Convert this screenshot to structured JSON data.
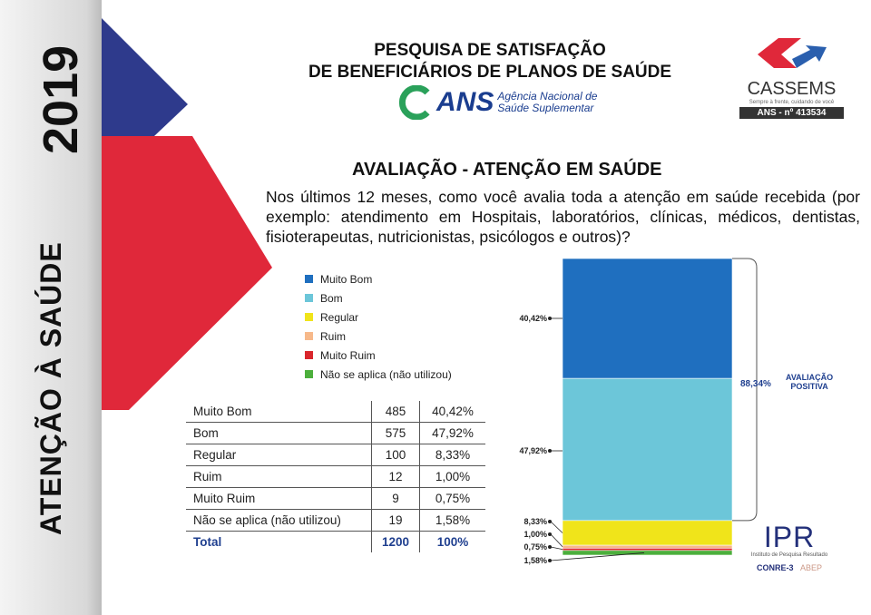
{
  "sidebar": {
    "year": "2019",
    "title": "ATENÇÃO À SAÚDE"
  },
  "header": {
    "title_line1": "PESQUISA DE SATISFAÇÃO",
    "title_line2": "DE BENEFICIÁRIOS DE PLANOS DE SAÚDE",
    "ans_logo": "ANS",
    "ans_line1": "Agência Nacional de",
    "ans_line2": "Saúde Suplementar",
    "cassems_name": "CASSEMS",
    "cassems_tagline": "Sempre à frente, cuidando de você",
    "cassems_reg": "ANS - nº 413534"
  },
  "section_title": "AVALIAÇÃO - ATENÇÃO EM SAÚDE",
  "question": "Nos últimos 12 meses, como você avalia toda a atenção em saúde recebida (por exemplo: atendimento em Hospitais, laboratórios, clínicas, médicos, dentistas, fisioterapeutas, nutricionistas, psicólogos e outros)?",
  "table": {
    "rows": [
      [
        "Muito Bom",
        "485",
        "40,42%"
      ],
      [
        "Bom",
        "575",
        "47,92%"
      ],
      [
        "Regular",
        "100",
        "8,33%"
      ],
      [
        "Ruim",
        "12",
        "1,00%"
      ],
      [
        "Muito Ruim",
        "9",
        "0,75%"
      ],
      [
        "Não se aplica (não utilizou)",
        "19",
        "1,58%"
      ]
    ],
    "total": [
      "Total",
      "1200",
      "100%"
    ]
  },
  "positive": {
    "value": "88,34%",
    "label_line1": "AVALIAÇÃO",
    "label_line2": "POSITIVA"
  },
  "footer": {
    "ipr": "IPR",
    "ipr_sub": "Instituto de Pesquisa Resultado",
    "conre": "CONRE-3",
    "abep": "ABEP"
  },
  "chart_data": {
    "type": "bar",
    "stacked": true,
    "categories": [
      "Muito Bom",
      "Bom",
      "Regular",
      "Ruim",
      "Muito Ruim",
      "Não se aplica (não utilizou)"
    ],
    "values": [
      40.42,
      47.92,
      8.33,
      1.0,
      0.75,
      1.58
    ],
    "labels": [
      "40,42%",
      "47,92%",
      "8,33%",
      "1,00%",
      "0,75%",
      "1,58%"
    ],
    "colors": [
      "#1f6fbf",
      "#6cc6d9",
      "#f0e41a",
      "#f7b98a",
      "#d9262c",
      "#4caf3c"
    ],
    "legend": "left",
    "ylim": [
      0,
      100
    ]
  }
}
